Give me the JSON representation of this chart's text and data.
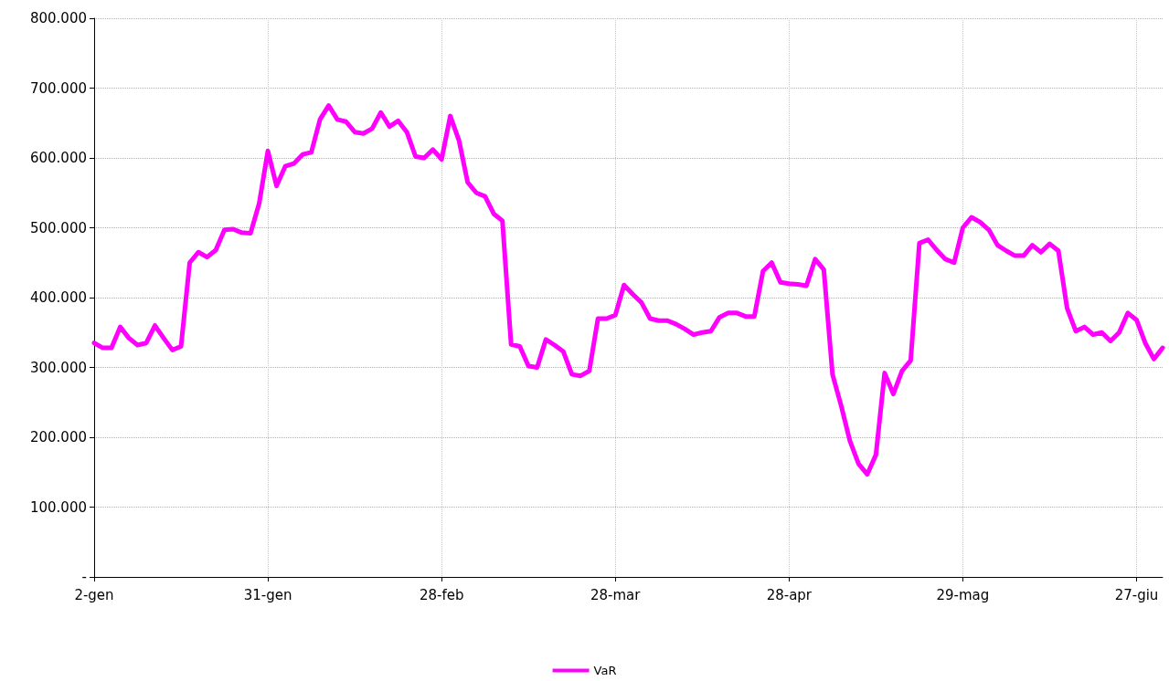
{
  "chart_data": {
    "type": "line",
    "categories": [
      "2-gen",
      null,
      null,
      null,
      null,
      null,
      null,
      null,
      null,
      null,
      null,
      null,
      null,
      null,
      null,
      null,
      null,
      null,
      null,
      null,
      "31-gen",
      null,
      null,
      null,
      null,
      null,
      null,
      null,
      null,
      null,
      null,
      null,
      null,
      null,
      null,
      null,
      null,
      null,
      null,
      null,
      "28-feb",
      null,
      null,
      null,
      null,
      null,
      null,
      null,
      null,
      null,
      null,
      null,
      null,
      null,
      null,
      null,
      null,
      null,
      null,
      null,
      "28-mar",
      null,
      null,
      null,
      null,
      null,
      null,
      null,
      null,
      null,
      null,
      null,
      null,
      null,
      null,
      null,
      null,
      null,
      null,
      null,
      "28-apr",
      null,
      null,
      null,
      null,
      null,
      null,
      null,
      null,
      null,
      null,
      null,
      null,
      null,
      null,
      null,
      null,
      null,
      null,
      null,
      "29-mag",
      null,
      null,
      null,
      null,
      null,
      null,
      null,
      null,
      null,
      null,
      null,
      null,
      null,
      null,
      null,
      null,
      null,
      null,
      null,
      "27-giu",
      null,
      null,
      null
    ],
    "series": [
      {
        "name": "VaR",
        "color": "#ff00ff",
        "values": [
          335000,
          328000,
          328000,
          358000,
          342000,
          332000,
          335000,
          360000,
          342000,
          325000,
          330000,
          450000,
          465000,
          458000,
          468000,
          497000,
          498000,
          493000,
          492000,
          535000,
          610000,
          560000,
          588000,
          592000,
          605000,
          608000,
          655000,
          675000,
          655000,
          652000,
          637000,
          635000,
          642000,
          665000,
          645000,
          653000,
          637000,
          602000,
          600000,
          612000,
          598000,
          660000,
          625000,
          565000,
          550000,
          545000,
          520000,
          510000,
          333000,
          330000,
          302000,
          300000,
          340000,
          332000,
          323000,
          290000,
          288000,
          295000,
          370000,
          370000,
          375000,
          418000,
          405000,
          393000,
          370000,
          367000,
          367000,
          362000,
          355000,
          347000,
          350000,
          352000,
          372000,
          378000,
          378000,
          373000,
          373000,
          438000,
          450000,
          422000,
          420000,
          419000,
          417000,
          455000,
          440000,
          290000,
          245000,
          195000,
          162000,
          147000,
          175000,
          292000,
          262000,
          295000,
          310000,
          478000,
          483000,
          468000,
          455000,
          450000,
          500000,
          515000,
          508000,
          497000,
          475000,
          467000,
          460000,
          460000,
          475000,
          465000,
          477000,
          467000,
          385000,
          352000,
          358000,
          347000,
          350000,
          338000,
          350000,
          378000,
          368000,
          335000,
          312000,
          328000
        ]
      }
    ],
    "ylim": [
      0,
      800000
    ],
    "yticks": [
      {
        "value": 0,
        "label": "-"
      },
      {
        "value": 100000,
        "label": "100.000"
      },
      {
        "value": 200000,
        "label": "200.000"
      },
      {
        "value": 300000,
        "label": "300.000"
      },
      {
        "value": 400000,
        "label": "400.000"
      },
      {
        "value": 500000,
        "label": "500.000"
      },
      {
        "value": 600000,
        "label": "600.000"
      },
      {
        "value": 700000,
        "label": "700.000"
      },
      {
        "value": 800000,
        "label": "800.000"
      }
    ],
    "grid": true,
    "legend": "bottom",
    "marker": "none",
    "line_style": "solid"
  }
}
